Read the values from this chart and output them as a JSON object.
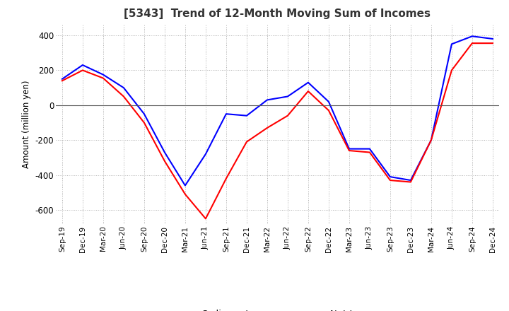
{
  "title": "[5343]  Trend of 12-Month Moving Sum of Incomes",
  "ylabel": "Amount (million yen)",
  "ylim": [
    -680,
    460
  ],
  "yticks": [
    -600,
    -400,
    -200,
    0,
    200,
    400
  ],
  "background_color": "#ffffff",
  "grid_color": "#b0b0b0",
  "ordinary_income_color": "#0000ff",
  "net_income_color": "#ff0000",
  "x_labels": [
    "Sep-19",
    "Dec-19",
    "Mar-20",
    "Jun-20",
    "Sep-20",
    "Dec-20",
    "Mar-21",
    "Jun-21",
    "Sep-21",
    "Dec-21",
    "Mar-22",
    "Jun-22",
    "Sep-22",
    "Dec-22",
    "Mar-23",
    "Jun-23",
    "Sep-23",
    "Dec-23",
    "Mar-24",
    "Jun-24",
    "Sep-24",
    "Dec-24"
  ],
  "ordinary_income": [
    150,
    230,
    175,
    100,
    -50,
    -270,
    -460,
    -280,
    -50,
    -60,
    30,
    50,
    130,
    20,
    -250,
    -250,
    -410,
    -430,
    -200,
    350,
    395,
    380
  ],
  "net_income": [
    140,
    200,
    155,
    50,
    -100,
    -320,
    -510,
    -650,
    -420,
    -210,
    -130,
    -60,
    80,
    -30,
    -260,
    -270,
    -430,
    -440,
    -200,
    200,
    355,
    355
  ]
}
